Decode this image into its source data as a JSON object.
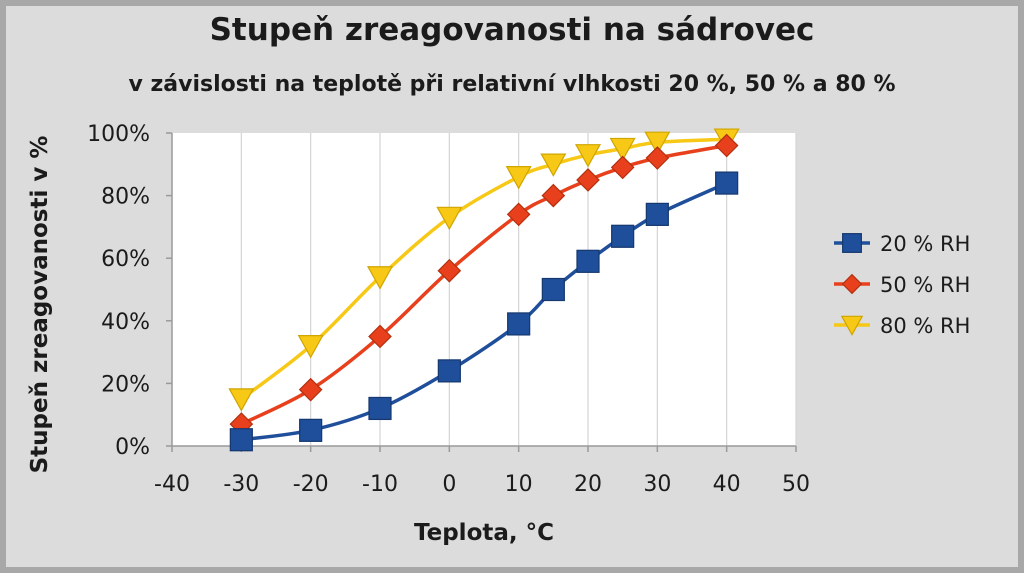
{
  "chart_data": {
    "type": "line",
    "title": "Stupeň zreagovanosti na sádrovec",
    "subtitle": "v závislosti na teplotě při relativní vlhkosti 20 %, 50 % a 80 %",
    "xlabel": "Teplota, °C",
    "ylabel": "Stupeň zreagovanosti v %",
    "xlim": [
      -40,
      50
    ],
    "ylim": [
      0,
      100
    ],
    "xticks": [
      -40,
      -30,
      -20,
      -10,
      0,
      10,
      20,
      30,
      40,
      50
    ],
    "xtick_labels": [
      "-40",
      "-30",
      "-20",
      "-10",
      "0",
      "10",
      "20",
      "30",
      "40",
      "50"
    ],
    "yticks": [
      0,
      20,
      40,
      60,
      80,
      100
    ],
    "ytick_labels": [
      "0%",
      "20%",
      "40%",
      "60%",
      "80%",
      "100%"
    ],
    "grid": "vertical",
    "legend_position": "right",
    "series": [
      {
        "name": "20 % RH",
        "color": "#1f4e9a",
        "marker": "square",
        "x": [
          -30,
          -20,
          -10,
          0,
          10,
          15,
          20,
          25,
          30,
          40
        ],
        "values": [
          2,
          5,
          12,
          24,
          39,
          50,
          59,
          67,
          74,
          84
        ]
      },
      {
        "name": "50 % RH",
        "color": "#e8401c",
        "marker": "diamond",
        "x": [
          -30,
          -20,
          -10,
          0,
          10,
          15,
          20,
          25,
          30,
          40
        ],
        "values": [
          7,
          18,
          35,
          56,
          74,
          80,
          85,
          89,
          92,
          96
        ]
      },
      {
        "name": "80 % RH",
        "color": "#f7c815",
        "marker": "triangle-down",
        "x": [
          -30,
          -20,
          -10,
          0,
          10,
          15,
          20,
          25,
          30,
          40
        ],
        "values": [
          15,
          32,
          54,
          73,
          86,
          90,
          93,
          95,
          97,
          98
        ]
      }
    ]
  }
}
